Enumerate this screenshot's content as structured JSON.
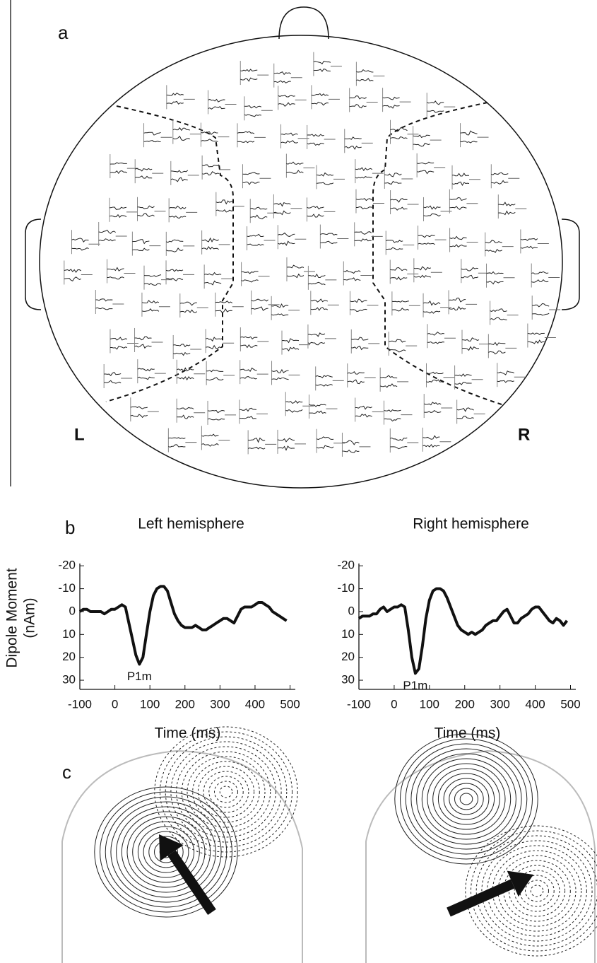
{
  "panels": {
    "a": {
      "label": "a",
      "left": "L",
      "right": "R"
    },
    "b": {
      "label": "b"
    },
    "c": {
      "label": "c"
    }
  },
  "chart_data": [
    {
      "type": "line",
      "title": "Left hemisphere",
      "ylabel": [
        "Dipole Moment",
        "(nAm)"
      ],
      "xlabel": "Time (ms)",
      "annotation": "P1m",
      "invert_y": true,
      "color": "#111",
      "x": [
        -100,
        -90,
        -80,
        -70,
        -60,
        -50,
        -40,
        -30,
        -20,
        -10,
        0,
        10,
        20,
        30,
        40,
        50,
        60,
        70,
        80,
        90,
        100,
        110,
        120,
        130,
        140,
        150,
        160,
        170,
        180,
        190,
        200,
        210,
        220,
        230,
        240,
        250,
        260,
        270,
        280,
        290,
        300,
        310,
        320,
        330,
        340,
        350,
        360,
        370,
        380,
        390,
        400,
        410,
        420,
        430,
        440,
        450,
        460,
        470,
        480,
        490
      ],
      "values": [
        0,
        -1,
        -1,
        0,
        0,
        0,
        0,
        1,
        0,
        -1,
        -1,
        -2,
        -3,
        -2,
        5,
        12,
        19,
        23,
        20,
        10,
        0,
        -7,
        -10,
        -11,
        -11,
        -9,
        -4,
        1,
        4,
        6,
        7,
        7,
        7,
        6,
        7,
        8,
        8,
        7,
        6,
        5,
        4,
        3,
        3,
        4,
        5,
        2,
        -1,
        -2,
        -2,
        -2,
        -3,
        -4,
        -4,
        -3,
        -2,
        0,
        1,
        2,
        3,
        4
      ],
      "xlim": [
        -100,
        515
      ],
      "xticks": [
        -100,
        0,
        100,
        200,
        300,
        400,
        500
      ],
      "ylim": [
        -21,
        34
      ],
      "yticks": [
        -20,
        -10,
        0,
        10,
        20,
        30
      ]
    },
    {
      "type": "line",
      "title": "Right hemisphere",
      "xlabel": "Time (ms)",
      "annotation": "P1m",
      "invert_y": true,
      "color": "#111",
      "x": [
        -100,
        -90,
        -80,
        -70,
        -60,
        -50,
        -40,
        -30,
        -20,
        -10,
        0,
        10,
        20,
        30,
        40,
        50,
        60,
        70,
        80,
        90,
        100,
        110,
        120,
        130,
        140,
        150,
        160,
        170,
        180,
        190,
        200,
        210,
        220,
        230,
        240,
        250,
        260,
        270,
        280,
        290,
        300,
        310,
        320,
        330,
        340,
        350,
        360,
        370,
        380,
        390,
        400,
        410,
        420,
        430,
        440,
        450,
        460,
        470,
        480,
        490
      ],
      "values": [
        3,
        2,
        2,
        2,
        1,
        1,
        -1,
        -2,
        0,
        -1,
        -2,
        -2,
        -3,
        -2,
        8,
        20,
        27,
        25,
        15,
        3,
        -5,
        -9,
        -10,
        -10,
        -9,
        -6,
        -2,
        2,
        6,
        8,
        9,
        10,
        9,
        10,
        9,
        8,
        6,
        5,
        4,
        4,
        2,
        0,
        -1,
        2,
        5,
        5,
        3,
        2,
        1,
        -1,
        -2,
        -2,
        0,
        2,
        4,
        5,
        3,
        4,
        6,
        4
      ],
      "xlim": [
        -100,
        515
      ],
      "xticks": [
        -100,
        0,
        100,
        200,
        300,
        400,
        500
      ],
      "ylim": [
        -21,
        34
      ],
      "yticks": [
        -20,
        -10,
        0,
        10,
        20,
        30
      ]
    }
  ]
}
